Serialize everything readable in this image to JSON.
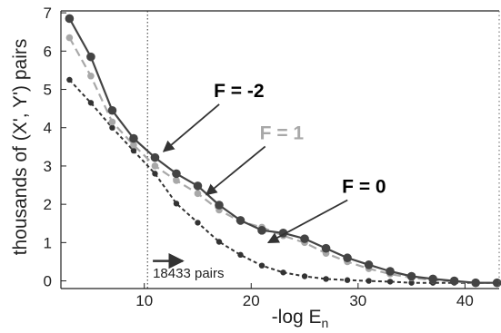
{
  "chart_data": {
    "type": "line",
    "title": "",
    "xlabel": "-log E",
    "xlabel_subscript": "n",
    "ylabel": "thousands of (X', Y') pairs",
    "xlim": [
      2.2,
      43.2
    ],
    "ylim": [
      -0.2,
      7.05
    ],
    "x_ticks": [
      10,
      20,
      30,
      40
    ],
    "y_ticks": [
      0,
      1,
      2,
      3,
      4,
      5,
      6,
      7
    ],
    "grid": false,
    "series": [
      {
        "name": "F = -2",
        "color": "#444444",
        "dash": "solid",
        "x": [
          3,
          5,
          7,
          9,
          11,
          13,
          15,
          17,
          19,
          21,
          23,
          25,
          27,
          29,
          31,
          33,
          35,
          37,
          39,
          41,
          43
        ],
        "y": [
          6.85,
          5.85,
          4.45,
          3.72,
          3.22,
          2.8,
          2.48,
          1.98,
          1.58,
          1.32,
          1.25,
          1.1,
          0.85,
          0.6,
          0.42,
          0.25,
          0.12,
          0.05,
          0.0,
          -0.05,
          -0.05
        ]
      },
      {
        "name": "F = 1",
        "color": "#a8a8a8",
        "dash": "dashed",
        "x": [
          3,
          5,
          7,
          9,
          11,
          13,
          15,
          17,
          19,
          21,
          23,
          25,
          27,
          29,
          31,
          33,
          35,
          37,
          39,
          41,
          43
        ],
        "y": [
          6.35,
          5.35,
          4.15,
          3.55,
          3.0,
          2.62,
          2.28,
          1.85,
          1.55,
          1.4,
          1.18,
          1.0,
          0.72,
          0.5,
          0.32,
          0.18,
          0.08,
          0.02,
          -0.02,
          -0.05,
          -0.05
        ]
      },
      {
        "name": "F = 0",
        "color": "#333333",
        "dash": "dotted",
        "x": [
          3,
          5,
          7,
          9,
          11,
          13,
          15,
          17,
          19,
          21,
          23,
          25,
          27,
          29,
          31,
          33,
          35,
          37,
          39,
          41,
          43
        ],
        "y": [
          5.25,
          4.65,
          4.0,
          3.4,
          2.8,
          2.02,
          1.52,
          1.02,
          0.68,
          0.4,
          0.22,
          0.12,
          0.05,
          0.02,
          0.0,
          -0.02,
          -0.05,
          -0.05,
          -0.05,
          -0.05,
          -0.05
        ]
      }
    ],
    "annotations": [
      {
        "text": "F = -2",
        "color": "#000000",
        "x": 16.5,
        "y": 4.8,
        "arrow_to": [
          11.8,
          3.38
        ]
      },
      {
        "text": "F = 1",
        "color": "#a8a8a8",
        "x": 20.8,
        "y": 3.7,
        "arrow_to": [
          15.8,
          2.25
        ]
      },
      {
        "text": "F = 0",
        "color": "#000000",
        "x": 28.5,
        "y": 2.3,
        "arrow_to": [
          21.6,
          1.0
        ]
      }
    ],
    "threshold": {
      "x": 10.3,
      "label": "18433 pairs",
      "label_x": 10.8,
      "label_y": 0.08,
      "arrow_from": [
        10.8,
        0.52
      ],
      "arrow_to": [
        13.6,
        0.52
      ]
    }
  }
}
